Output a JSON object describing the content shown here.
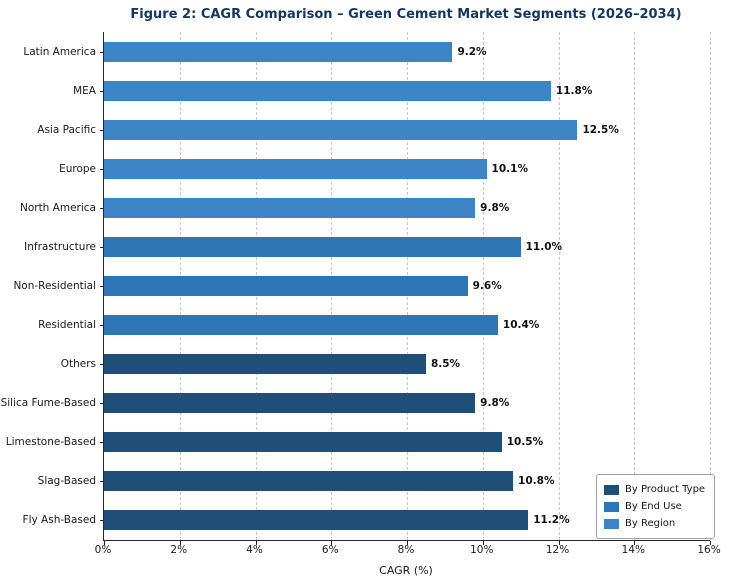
{
  "chart_data": {
    "type": "bar",
    "orientation": "horizontal",
    "title": "Figure 2: CAGR Comparison – Green Cement Market Segments (2026–2034)",
    "title_color": "#17365d",
    "xlabel": "CAGR (%)",
    "xlim": [
      0,
      16
    ],
    "xtick_labels": [
      "0%",
      "2%",
      "4%",
      "6%",
      "8%",
      "10%",
      "12%",
      "14%",
      "16%"
    ],
    "grid": "vertical-dashed",
    "legend_position": "lower-right",
    "categories_top_to_bottom": [
      "Latin America",
      "MEA",
      "Asia Pacific",
      "Europe",
      "North America",
      "Infrastructure",
      "Non-Residential",
      "Residential",
      "Others",
      "Silica Fume-Based",
      "Limestone-Based",
      "Slag-Based",
      "Fly Ash-Based"
    ],
    "values": [
      9.2,
      11.8,
      12.5,
      10.1,
      9.8,
      11.0,
      9.6,
      10.4,
      8.5,
      9.8,
      10.5,
      10.8,
      11.2
    ],
    "value_labels": [
      "9.2%",
      "11.8%",
      "12.5%",
      "10.1%",
      "9.8%",
      "11.0%",
      "9.6%",
      "10.4%",
      "8.5%",
      "9.8%",
      "10.5%",
      "10.8%",
      "11.2%"
    ],
    "group_per_bar": [
      "By Region",
      "By Region",
      "By Region",
      "By Region",
      "By Region",
      "By End Use",
      "By End Use",
      "By End Use",
      "By Product Type",
      "By Product Type",
      "By Product Type",
      "By Product Type",
      "By Product Type"
    ],
    "colors": {
      "By Product Type": "#1f4e79",
      "By End Use": "#2e75b6",
      "By Region": "#3d85c6"
    },
    "legend": [
      {
        "label": "By Product Type",
        "color": "#1f4e79"
      },
      {
        "label": "By End Use",
        "color": "#2e75b6"
      },
      {
        "label": "By Region",
        "color": "#3d85c6"
      }
    ]
  }
}
